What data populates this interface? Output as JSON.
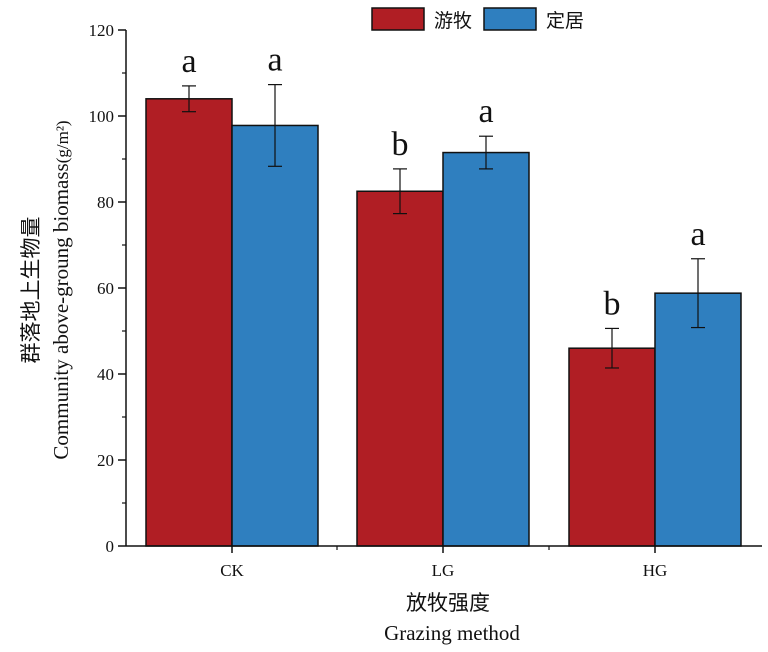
{
  "chart_data": {
    "type": "bar",
    "categories": [
      "CK",
      "LG",
      "HG"
    ],
    "series": [
      {
        "name": "游牧",
        "color": "#b01e24",
        "values": [
          104,
          82.5,
          46
        ],
        "errors": [
          3.0,
          5.2,
          4.6
        ],
        "sig_labels": [
          "a",
          "b",
          "b"
        ]
      },
      {
        "name": "定居",
        "color": "#2f7fbf",
        "values": [
          97.8,
          91.5,
          58.8
        ],
        "errors": [
          9.5,
          3.8,
          8.0
        ],
        "sig_labels": [
          "a",
          "a",
          "a"
        ]
      }
    ],
    "ylim": [
      0,
      120
    ],
    "yticks": [
      0,
      20,
      40,
      60,
      80,
      100,
      120
    ],
    "ylabel_cn": "群落地上生物量",
    "ylabel_en": "Community above-groung biomass",
    "ylabel_unit": "(g/m²)",
    "xlabel_cn": "放牧强度",
    "xlabel_en": "Grazing method",
    "legend_position": "top"
  }
}
